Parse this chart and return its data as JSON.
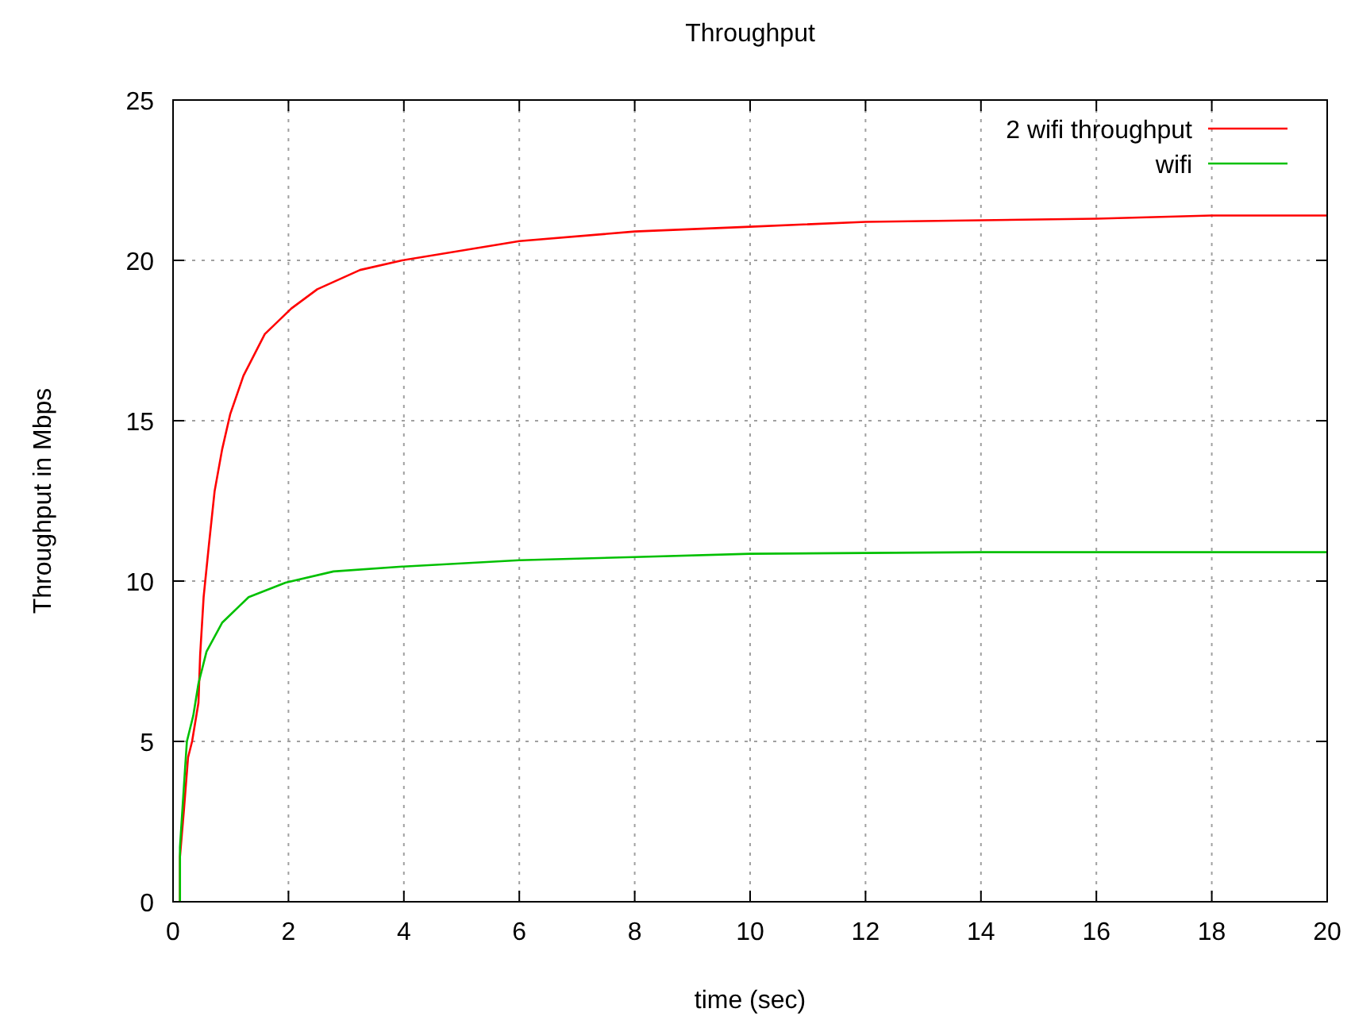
{
  "chart_data": {
    "type": "line",
    "title": "Throughput",
    "xlabel": "time (sec)",
    "ylabel": "Throughput in Mbps",
    "xlim": [
      0,
      20
    ],
    "ylim": [
      0,
      25
    ],
    "xticks": [
      0,
      2,
      4,
      6,
      8,
      10,
      12,
      14,
      16,
      18,
      20
    ],
    "yticks": [
      0,
      5,
      10,
      15,
      20,
      25
    ],
    "grid": true,
    "legend": "top right",
    "marker": "none",
    "line_style": "solid",
    "series": [
      {
        "name": "2 wifi throughput",
        "color": "#ff0000",
        "x": [
          0.12,
          0.12,
          0.19,
          0.26,
          0.33,
          0.44,
          0.47,
          0.53,
          0.62,
          0.72,
          0.85,
          0.99,
          1.22,
          1.59,
          2.05,
          2.5,
          3.24,
          3.97,
          6,
          8,
          10,
          12,
          14,
          16,
          18,
          20
        ],
        "values": [
          0,
          1.4,
          2.9,
          4.5,
          5,
          6.2,
          7.7,
          9.5,
          11.1,
          12.8,
          14.1,
          15.2,
          16.4,
          17.7,
          18.5,
          19.1,
          19.7,
          20,
          20.6,
          20.9,
          21.05,
          21.2,
          21.25,
          21.3,
          21.4,
          21.4
        ]
      },
      {
        "name": "wifi",
        "color": "#00c000",
        "x": [
          0.12,
          0.12,
          0.21,
          0.24,
          0.35,
          0.44,
          0.58,
          0.85,
          1.31,
          1.95,
          2.78,
          3.97,
          6,
          8,
          10,
          14,
          20
        ],
        "values": [
          0,
          1.7,
          4.2,
          5,
          5.8,
          6.8,
          7.8,
          8.7,
          9.5,
          9.95,
          10.3,
          10.45,
          10.65,
          10.75,
          10.85,
          10.9,
          10.9
        ]
      }
    ]
  }
}
